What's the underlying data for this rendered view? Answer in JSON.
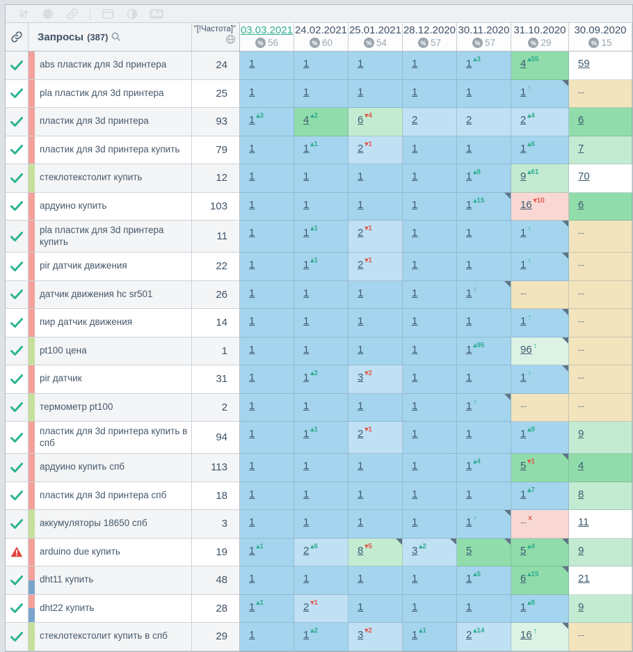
{
  "toolbar": {
    "icons": [
      "sort-icon",
      "filled-circle-icon",
      "link-icon",
      "divider",
      "panel-icon",
      "contrast-icon",
      "text-format-icon"
    ]
  },
  "header": {
    "queries_label": "Запросы",
    "queries_count": "(387)",
    "search_icon": "search-icon",
    "link_icon": "link-icon",
    "frequency_label": "\"[!Частота]\"",
    "globe_icon": "globe-icon",
    "dates": [
      {
        "label": "03.03.2021",
        "percent": "56",
        "active": true
      },
      {
        "label": "24.02.2021",
        "percent": "60",
        "active": false
      },
      {
        "label": "25.01.2021",
        "percent": "54",
        "active": false
      },
      {
        "label": "28.12.2020",
        "percent": "57",
        "active": false
      },
      {
        "label": "30.11.2020",
        "percent": "57",
        "active": false
      },
      {
        "label": "31.10.2020",
        "percent": "29",
        "active": false
      },
      {
        "label": "30.09.2020",
        "percent": "15",
        "active": false
      }
    ]
  },
  "colors": {
    "check": "#2bb393",
    "warning": "#e0473d",
    "delta_up": "#2fae8e",
    "delta_down": "#e2574c",
    "active_date": "#2fae8e",
    "tags": {
      "red": "#f2a29b",
      "green": "#c5e09b",
      "blue": "#7aa3cc"
    },
    "cells": {
      "blue": "#a5d4ee",
      "bluelight": "#c0e0f4",
      "green": "#90dcab",
      "greenlight": "#c3ebd1",
      "greenpale": "#dcf2e4",
      "pink": "#f9d8d3",
      "tan": "#f2e4bd",
      "white": "#ffffff"
    }
  },
  "rows": [
    {
      "keyword": "abs пластик для 3d принтера",
      "frequency": "24",
      "status": "ok",
      "tags": [
        "red"
      ],
      "cells": [
        {
          "pos": "1",
          "bg": "blue"
        },
        {
          "pos": "1",
          "bg": "blue"
        },
        {
          "pos": "1",
          "bg": "blue"
        },
        {
          "pos": "1",
          "bg": "blue"
        },
        {
          "pos": "1",
          "bg": "blue",
          "delta": "3",
          "dir": "up"
        },
        {
          "pos": "4",
          "bg": "green",
          "delta": "55",
          "dir": "up"
        },
        {
          "pos": "59",
          "bg": "white"
        }
      ]
    },
    {
      "keyword": "pla пластик для 3d принтера",
      "frequency": "25",
      "status": "ok",
      "tags": [
        "red"
      ],
      "cells": [
        {
          "pos": "1",
          "bg": "blue"
        },
        {
          "pos": "1",
          "bg": "blue"
        },
        {
          "pos": "1",
          "bg": "blue"
        },
        {
          "pos": "1",
          "bg": "blue"
        },
        {
          "pos": "1",
          "bg": "blue"
        },
        {
          "pos": "1",
          "bg": "blue",
          "arrow": true,
          "corner": true
        },
        {
          "pos": "--",
          "bg": "tan"
        }
      ]
    },
    {
      "keyword": "пластик для 3d принтера",
      "frequency": "93",
      "status": "ok",
      "tags": [
        "red"
      ],
      "cells": [
        {
          "pos": "1",
          "bg": "blue",
          "delta": "3",
          "dir": "up"
        },
        {
          "pos": "4",
          "bg": "green",
          "delta": "2",
          "dir": "up"
        },
        {
          "pos": "6",
          "bg": "greenlight",
          "delta": "4",
          "dir": "down"
        },
        {
          "pos": "2",
          "bg": "bluelight"
        },
        {
          "pos": "2",
          "bg": "bluelight"
        },
        {
          "pos": "2",
          "bg": "bluelight",
          "delta": "4",
          "dir": "up"
        },
        {
          "pos": "6",
          "bg": "green"
        }
      ]
    },
    {
      "keyword": "пластик для 3d принтера купить",
      "frequency": "79",
      "status": "ok",
      "tags": [
        "red"
      ],
      "cells": [
        {
          "pos": "1",
          "bg": "blue"
        },
        {
          "pos": "1",
          "bg": "blue",
          "delta": "1",
          "dir": "up"
        },
        {
          "pos": "2",
          "bg": "bluelight",
          "delta": "1",
          "dir": "down"
        },
        {
          "pos": "1",
          "bg": "blue"
        },
        {
          "pos": "1",
          "bg": "blue"
        },
        {
          "pos": "1",
          "bg": "blue",
          "delta": "6",
          "dir": "up"
        },
        {
          "pos": "7",
          "bg": "greenlight"
        }
      ]
    },
    {
      "keyword": "стеклотекстолит купить",
      "frequency": "12",
      "status": "ok",
      "tags": [
        "green"
      ],
      "cells": [
        {
          "pos": "1",
          "bg": "blue"
        },
        {
          "pos": "1",
          "bg": "blue"
        },
        {
          "pos": "1",
          "bg": "blue"
        },
        {
          "pos": "1",
          "bg": "blue"
        },
        {
          "pos": "1",
          "bg": "blue",
          "delta": "8",
          "dir": "up"
        },
        {
          "pos": "9",
          "bg": "greenlight",
          "delta": "61",
          "dir": "up"
        },
        {
          "pos": "70",
          "bg": "white"
        }
      ]
    },
    {
      "keyword": "ардуино купить",
      "frequency": "103",
      "status": "ok",
      "tags": [
        "red"
      ],
      "cells": [
        {
          "pos": "1",
          "bg": "blue"
        },
        {
          "pos": "1",
          "bg": "blue"
        },
        {
          "pos": "1",
          "bg": "blue"
        },
        {
          "pos": "1",
          "bg": "blue"
        },
        {
          "pos": "1",
          "bg": "blue",
          "delta": "15",
          "dir": "up",
          "corner": true
        },
        {
          "pos": "16",
          "bg": "pink",
          "delta": "10",
          "dir": "down"
        },
        {
          "pos": "6",
          "bg": "green"
        }
      ]
    },
    {
      "keyword": "pla пластик для 3d принтера купить",
      "frequency": "11",
      "status": "ok",
      "tags": [
        "red"
      ],
      "tall": true,
      "cells": [
        {
          "pos": "1",
          "bg": "blue"
        },
        {
          "pos": "1",
          "bg": "blue",
          "delta": "1",
          "dir": "up"
        },
        {
          "pos": "2",
          "bg": "bluelight",
          "delta": "1",
          "dir": "down"
        },
        {
          "pos": "1",
          "bg": "blue"
        },
        {
          "pos": "1",
          "bg": "blue"
        },
        {
          "pos": "1",
          "bg": "blue",
          "arrow": true,
          "corner": true
        },
        {
          "pos": "--",
          "bg": "tan"
        }
      ]
    },
    {
      "keyword": "pir датчик движения",
      "frequency": "22",
      "status": "ok",
      "tags": [
        "red"
      ],
      "cells": [
        {
          "pos": "1",
          "bg": "blue"
        },
        {
          "pos": "1",
          "bg": "blue",
          "delta": "1",
          "dir": "up"
        },
        {
          "pos": "2",
          "bg": "bluelight",
          "delta": "1",
          "dir": "down"
        },
        {
          "pos": "1",
          "bg": "blue"
        },
        {
          "pos": "1",
          "bg": "blue"
        },
        {
          "pos": "1",
          "bg": "blue",
          "arrow": true,
          "corner": true
        },
        {
          "pos": "--",
          "bg": "tan"
        }
      ]
    },
    {
      "keyword": "датчик движения hc sr501",
      "frequency": "26",
      "status": "ok",
      "tags": [
        "red"
      ],
      "cells": [
        {
          "pos": "1",
          "bg": "blue"
        },
        {
          "pos": "1",
          "bg": "blue"
        },
        {
          "pos": "1",
          "bg": "blue"
        },
        {
          "pos": "1",
          "bg": "blue"
        },
        {
          "pos": "1",
          "bg": "blue",
          "arrow": true,
          "corner": true
        },
        {
          "pos": "--",
          "bg": "tan"
        },
        {
          "pos": "--",
          "bg": "tan"
        }
      ]
    },
    {
      "keyword": "пир датчик движения",
      "frequency": "14",
      "status": "ok",
      "tags": [
        "red"
      ],
      "cells": [
        {
          "pos": "1",
          "bg": "blue"
        },
        {
          "pos": "1",
          "bg": "blue"
        },
        {
          "pos": "1",
          "bg": "blue"
        },
        {
          "pos": "1",
          "bg": "blue"
        },
        {
          "pos": "1",
          "bg": "blue"
        },
        {
          "pos": "1",
          "bg": "blue",
          "arrow": true,
          "corner": true
        },
        {
          "pos": "--",
          "bg": "tan"
        }
      ]
    },
    {
      "keyword": "pt100 цена",
      "frequency": "1",
      "status": "ok",
      "tags": [
        "green"
      ],
      "cells": [
        {
          "pos": "1",
          "bg": "blue"
        },
        {
          "pos": "1",
          "bg": "blue"
        },
        {
          "pos": "1",
          "bg": "blue"
        },
        {
          "pos": "1",
          "bg": "blue"
        },
        {
          "pos": "1",
          "bg": "blue",
          "delta": "95",
          "dir": "up"
        },
        {
          "pos": "96",
          "bg": "greenpale",
          "arrow": true,
          "corner": true
        },
        {
          "pos": "--",
          "bg": "tan"
        }
      ]
    },
    {
      "keyword": "pir датчик",
      "frequency": "31",
      "status": "ok",
      "tags": [
        "red"
      ],
      "cells": [
        {
          "pos": "1",
          "bg": "blue"
        },
        {
          "pos": "1",
          "bg": "blue",
          "delta": "2",
          "dir": "up"
        },
        {
          "pos": "3",
          "bg": "bluelight",
          "delta": "2",
          "dir": "down"
        },
        {
          "pos": "1",
          "bg": "blue"
        },
        {
          "pos": "1",
          "bg": "blue"
        },
        {
          "pos": "1",
          "bg": "blue",
          "arrow": true,
          "corner": true
        },
        {
          "pos": "--",
          "bg": "tan"
        }
      ]
    },
    {
      "keyword": "термометр pt100",
      "frequency": "2",
      "status": "ok",
      "tags": [
        "green"
      ],
      "cells": [
        {
          "pos": "1",
          "bg": "blue"
        },
        {
          "pos": "1",
          "bg": "blue"
        },
        {
          "pos": "1",
          "bg": "blue"
        },
        {
          "pos": "1",
          "bg": "blue"
        },
        {
          "pos": "1",
          "bg": "blue",
          "arrow": true,
          "corner": true
        },
        {
          "pos": "--",
          "bg": "tan"
        },
        {
          "pos": "--",
          "bg": "tan"
        }
      ]
    },
    {
      "keyword": "пластик для 3d принтера купить в спб",
      "frequency": "94",
      "status": "ok",
      "tags": [
        "red"
      ],
      "tall": true,
      "cells": [
        {
          "pos": "1",
          "bg": "blue"
        },
        {
          "pos": "1",
          "bg": "blue",
          "delta": "1",
          "dir": "up"
        },
        {
          "pos": "2",
          "bg": "bluelight",
          "delta": "1",
          "dir": "down"
        },
        {
          "pos": "1",
          "bg": "blue"
        },
        {
          "pos": "1",
          "bg": "blue"
        },
        {
          "pos": "1",
          "bg": "blue",
          "delta": "8",
          "dir": "up"
        },
        {
          "pos": "9",
          "bg": "greenlight"
        }
      ]
    },
    {
      "keyword": "ардуино купить спб",
      "frequency": "113",
      "status": "ok",
      "tags": [
        "red"
      ],
      "cells": [
        {
          "pos": "1",
          "bg": "blue"
        },
        {
          "pos": "1",
          "bg": "blue"
        },
        {
          "pos": "1",
          "bg": "blue"
        },
        {
          "pos": "1",
          "bg": "blue"
        },
        {
          "pos": "1",
          "bg": "blue",
          "delta": "4",
          "dir": "up"
        },
        {
          "pos": "5",
          "bg": "green",
          "delta": "1",
          "dir": "down",
          "corner": true
        },
        {
          "pos": "4",
          "bg": "green"
        }
      ]
    },
    {
      "keyword": "пластик для 3d принтера спб",
      "frequency": "18",
      "status": "ok",
      "tags": [
        "red"
      ],
      "cells": [
        {
          "pos": "1",
          "bg": "blue"
        },
        {
          "pos": "1",
          "bg": "blue"
        },
        {
          "pos": "1",
          "bg": "blue"
        },
        {
          "pos": "1",
          "bg": "blue"
        },
        {
          "pos": "1",
          "bg": "blue"
        },
        {
          "pos": "1",
          "bg": "blue",
          "delta": "7",
          "dir": "up"
        },
        {
          "pos": "8",
          "bg": "greenlight"
        }
      ]
    },
    {
      "keyword": "аккумуляторы 18650 спб",
      "frequency": "3",
      "status": "ok",
      "tags": [
        "green"
      ],
      "cells": [
        {
          "pos": "1",
          "bg": "blue"
        },
        {
          "pos": "1",
          "bg": "blue"
        },
        {
          "pos": "1",
          "bg": "blue"
        },
        {
          "pos": "1",
          "bg": "blue"
        },
        {
          "pos": "1",
          "bg": "blue",
          "arrow": true,
          "corner": true
        },
        {
          "pos": "--",
          "bg": "pink",
          "xmark": true
        },
        {
          "pos": "11",
          "bg": "white"
        }
      ]
    },
    {
      "keyword": "arduino due купить",
      "frequency": "19",
      "status": "warning",
      "tags": [
        "red"
      ],
      "cells": [
        {
          "pos": "1",
          "bg": "blue",
          "delta": "1",
          "dir": "up"
        },
        {
          "pos": "2",
          "bg": "bluelight",
          "delta": "6",
          "dir": "up"
        },
        {
          "pos": "8",
          "bg": "greenlight",
          "delta": "5",
          "dir": "down",
          "corner": true
        },
        {
          "pos": "3",
          "bg": "bluelight",
          "delta": "2",
          "dir": "up",
          "corner": true
        },
        {
          "pos": "5",
          "bg": "green",
          "corner": true
        },
        {
          "pos": "5",
          "bg": "green",
          "delta": "4",
          "dir": "up",
          "corner": true
        },
        {
          "pos": "9",
          "bg": "greenlight"
        }
      ]
    },
    {
      "keyword": "dht11 купить",
      "frequency": "48",
      "status": "ok",
      "tags": [
        "red",
        "blue"
      ],
      "cells": [
        {
          "pos": "1",
          "bg": "blue"
        },
        {
          "pos": "1",
          "bg": "blue"
        },
        {
          "pos": "1",
          "bg": "blue"
        },
        {
          "pos": "1",
          "bg": "blue"
        },
        {
          "pos": "1",
          "bg": "blue",
          "delta": "5",
          "dir": "up"
        },
        {
          "pos": "6",
          "bg": "green",
          "delta": "15",
          "dir": "up",
          "corner": true
        },
        {
          "pos": "21",
          "bg": "white"
        }
      ]
    },
    {
      "keyword": "dht22 купить",
      "frequency": "28",
      "status": "ok",
      "tags": [
        "red",
        "blue"
      ],
      "cells": [
        {
          "pos": "1",
          "bg": "blue",
          "delta": "1",
          "dir": "up"
        },
        {
          "pos": "2",
          "bg": "bluelight",
          "delta": "1",
          "dir": "down"
        },
        {
          "pos": "1",
          "bg": "blue"
        },
        {
          "pos": "1",
          "bg": "blue"
        },
        {
          "pos": "1",
          "bg": "blue"
        },
        {
          "pos": "1",
          "bg": "blue",
          "delta": "8",
          "dir": "up"
        },
        {
          "pos": "9",
          "bg": "greenlight"
        }
      ]
    },
    {
      "keyword": "стеклотекстолит купить в спб",
      "frequency": "29",
      "status": "ok",
      "tags": [
        "green"
      ],
      "cells": [
        {
          "pos": "1",
          "bg": "blue"
        },
        {
          "pos": "1",
          "bg": "blue",
          "delta": "2",
          "dir": "up"
        },
        {
          "pos": "3",
          "bg": "bluelight",
          "delta": "2",
          "dir": "down"
        },
        {
          "pos": "1",
          "bg": "blue",
          "delta": "1",
          "dir": "up"
        },
        {
          "pos": "2",
          "bg": "bluelight",
          "delta": "14",
          "dir": "up"
        },
        {
          "pos": "16",
          "bg": "greenpale",
          "arrow": true,
          "corner": true
        },
        {
          "pos": "--",
          "bg": "tan"
        }
      ]
    }
  ],
  "partial_row": {
    "tags": [
      "green"
    ],
    "cell_bgs": [
      "blue",
      "blue",
      "blue",
      "blue",
      "blue",
      "green",
      "tan"
    ]
  }
}
